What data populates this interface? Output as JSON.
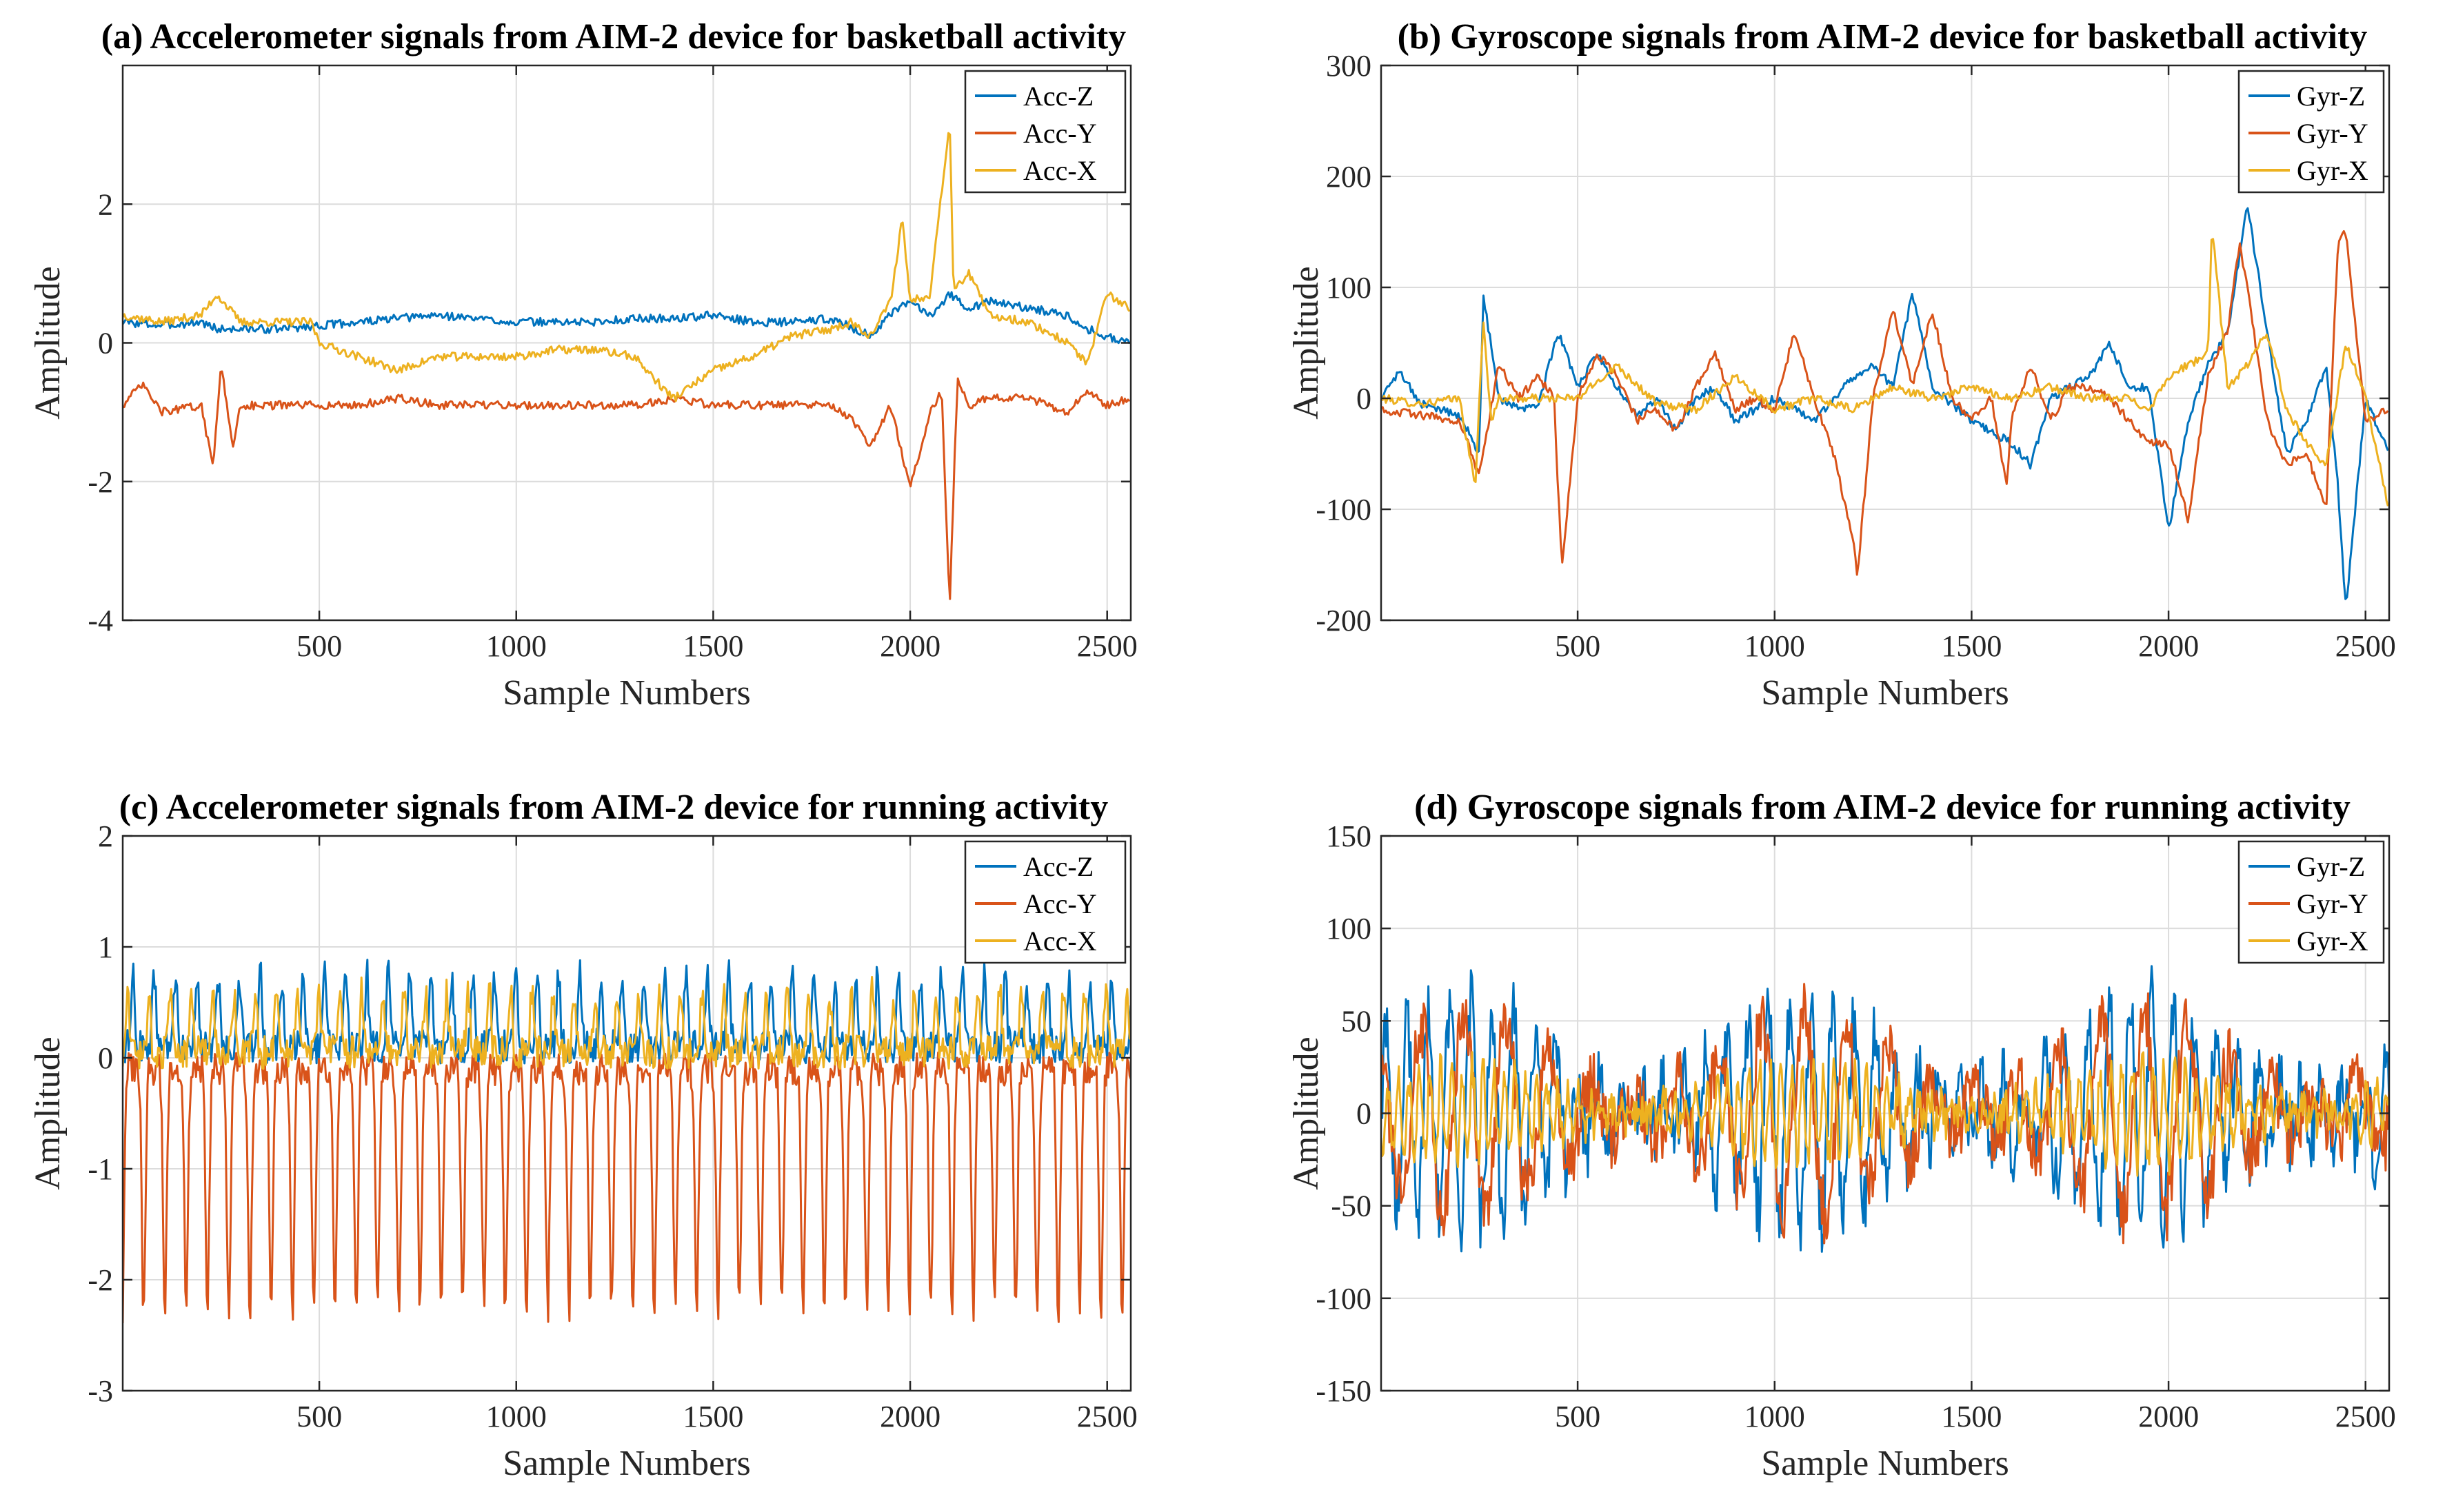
{
  "colors": {
    "Z": "#0072BD",
    "Y": "#D95319",
    "X": "#EDB120",
    "grid": "#dcdcdc",
    "axis": "#262626"
  },
  "chart_data": [
    {
      "type": "line",
      "title": "(a) Accelerometer signals from AIM-2 device for basketball activity",
      "xlabel": "Sample Numbers",
      "ylabel": "Amplitude",
      "xlim": [
        1,
        2560
      ],
      "ylim": [
        -4,
        4
      ],
      "xticks": [
        500,
        1000,
        1500,
        2000,
        2500
      ],
      "xtick_labels": [
        "500",
        "1000",
        "1500",
        "2000",
        "2500"
      ],
      "yticks": [
        -4,
        -2,
        0,
        2
      ],
      "ytick_labels": [
        "-4",
        "-2",
        "0",
        "2"
      ],
      "grid": true,
      "legend_position": "top-right",
      "series": [
        {
          "name": "Acc-Z",
          "color_key": "Z",
          "x": [
            1,
            100,
            200,
            240,
            300,
            400,
            500,
            600,
            700,
            800,
            900,
            1000,
            1100,
            1200,
            1300,
            1400,
            1500,
            1600,
            1700,
            1800,
            1900,
            1950,
            2000,
            2050,
            2100,
            2150,
            2200,
            2300,
            2400,
            2450,
            2500,
            2560
          ],
          "y": [
            0.3,
            0.25,
            0.3,
            0.2,
            0.2,
            0.2,
            0.25,
            0.3,
            0.35,
            0.4,
            0.35,
            0.3,
            0.3,
            0.3,
            0.35,
            0.35,
            0.4,
            0.3,
            0.3,
            0.35,
            0.1,
            0.4,
            0.6,
            0.4,
            0.7,
            0.5,
            0.6,
            0.5,
            0.4,
            0.2,
            0.1,
            0.0
          ]
        },
        {
          "name": "Acc-Y",
          "color_key": "Y",
          "x": [
            1,
            50,
            100,
            200,
            230,
            250,
            280,
            300,
            400,
            500,
            600,
            700,
            800,
            900,
            1000,
            1100,
            1200,
            1300,
            1400,
            1500,
            1600,
            1700,
            1800,
            1850,
            1900,
            1950,
            2000,
            2050,
            2080,
            2100,
            2120,
            2150,
            2200,
            2300,
            2400,
            2450,
            2500,
            2560
          ],
          "y": [
            -0.9,
            -0.6,
            -1.0,
            -0.9,
            -1.8,
            -0.3,
            -1.5,
            -0.9,
            -0.9,
            -0.9,
            -0.9,
            -0.8,
            -0.9,
            -0.9,
            -0.9,
            -0.9,
            -0.9,
            -0.9,
            -0.8,
            -0.9,
            -0.9,
            -0.9,
            -0.9,
            -1.1,
            -1.5,
            -0.9,
            -2.1,
            -1.0,
            -0.7,
            -3.8,
            -0.5,
            -0.9,
            -0.8,
            -0.8,
            -1.0,
            -0.7,
            -0.9,
            -0.8
          ]
        },
        {
          "name": "Acc-X",
          "color_key": "X",
          "x": [
            1,
            100,
            200,
            240,
            300,
            400,
            480,
            500,
            600,
            700,
            800,
            900,
            1000,
            1100,
            1200,
            1300,
            1380,
            1400,
            1500,
            1600,
            1700,
            1800,
            1850,
            1900,
            1950,
            1980,
            2000,
            2050,
            2100,
            2110,
            2150,
            2200,
            2300,
            2400,
            2450,
            2500,
            2560
          ],
          "y": [
            0.4,
            0.3,
            0.4,
            0.7,
            0.3,
            0.3,
            0.3,
            0.0,
            -0.2,
            -0.4,
            -0.2,
            -0.2,
            -0.2,
            -0.1,
            -0.1,
            -0.2,
            -0.7,
            -0.8,
            -0.4,
            -0.2,
            0.1,
            0.2,
            0.3,
            0.1,
            0.6,
            1.8,
            0.6,
            0.7,
            3.2,
            0.8,
            1.0,
            0.4,
            0.3,
            0.0,
            -0.3,
            0.7,
            0.5
          ]
        }
      ]
    },
    {
      "type": "line",
      "title": "(b) Gyroscope signals from AIM-2 device for basketball activity",
      "xlabel": "Sample Numbers",
      "ylabel": "Amplitude",
      "xlim": [
        1,
        2560
      ],
      "ylim": [
        -200,
        300
      ],
      "xticks": [
        500,
        1000,
        1500,
        2000,
        2500
      ],
      "xtick_labels": [
        "500",
        "1000",
        "1500",
        "2000",
        "2500"
      ],
      "yticks": [
        -200,
        -100,
        0,
        100,
        200,
        300
      ],
      "ytick_labels": [
        "-200",
        "-100",
        "0",
        "100",
        "200",
        "300"
      ],
      "grid": true,
      "legend_position": "top-right",
      "series": [
        {
          "name": "Gyr-Z",
          "color_key": "Z",
          "x": [
            1,
            50,
            100,
            150,
            200,
            250,
            260,
            300,
            350,
            400,
            450,
            500,
            550,
            600,
            650,
            700,
            750,
            800,
            850,
            900,
            950,
            1000,
            1100,
            1200,
            1250,
            1300,
            1350,
            1400,
            1500,
            1600,
            1650,
            1700,
            1800,
            1850,
            1900,
            1950,
            2000,
            2050,
            2100,
            2150,
            2200,
            2250,
            2300,
            2350,
            2400,
            2430,
            2450,
            2500,
            2560
          ],
          "y": [
            0,
            25,
            -5,
            -10,
            -15,
            -50,
            95,
            0,
            -10,
            -5,
            60,
            10,
            40,
            10,
            -15,
            0,
            -30,
            0,
            10,
            -20,
            -10,
            0,
            -20,
            20,
            30,
            10,
            95,
            10,
            -20,
            -40,
            -60,
            0,
            20,
            50,
            10,
            10,
            -120,
            -20,
            30,
            60,
            175,
            60,
            -50,
            -20,
            30,
            -80,
            -190,
            0,
            -50
          ]
        },
        {
          "name": "Gyr-Y",
          "color_key": "Y",
          "x": [
            1,
            100,
            200,
            250,
            300,
            350,
            400,
            440,
            460,
            500,
            550,
            600,
            650,
            700,
            750,
            800,
            850,
            900,
            950,
            1000,
            1050,
            1100,
            1150,
            1200,
            1210,
            1250,
            1300,
            1350,
            1400,
            1450,
            1500,
            1550,
            1590,
            1600,
            1650,
            1700,
            1750,
            1800,
            1850,
            1900,
            1950,
            2000,
            2050,
            2100,
            2150,
            2180,
            2200,
            2250,
            2300,
            2350,
            2400,
            2430,
            2450,
            2500,
            2560
          ],
          "y": [
            -10,
            -15,
            -20,
            -70,
            30,
            0,
            20,
            0,
            -155,
            0,
            40,
            20,
            -20,
            -10,
            -30,
            10,
            40,
            -10,
            0,
            -10,
            60,
            0,
            -50,
            -130,
            -160,
            0,
            80,
            10,
            80,
            0,
            -20,
            0,
            -80,
            -20,
            30,
            -20,
            10,
            10,
            0,
            -20,
            -40,
            -40,
            -110,
            20,
            60,
            140,
            100,
            -20,
            -60,
            -50,
            -100,
            140,
            150,
            -20,
            -10
          ]
        },
        {
          "name": "Gyr-X",
          "color_key": "X",
          "x": [
            1,
            100,
            200,
            240,
            260,
            280,
            300,
            400,
            500,
            600,
            700,
            800,
            900,
            1000,
            1100,
            1200,
            1300,
            1400,
            1500,
            1600,
            1700,
            1800,
            1900,
            1950,
            2000,
            2050,
            2100,
            2110,
            2150,
            2200,
            2250,
            2300,
            2350,
            2400,
            2450,
            2500,
            2560
          ],
          "y": [
            0,
            -5,
            0,
            -80,
            70,
            -20,
            0,
            0,
            0,
            30,
            -5,
            -10,
            20,
            -10,
            0,
            -10,
            10,
            0,
            10,
            0,
            10,
            0,
            0,
            -10,
            20,
            30,
            40,
            155,
            10,
            30,
            60,
            -10,
            -40,
            -60,
            50,
            0,
            -100
          ]
        }
      ]
    },
    {
      "type": "line",
      "title": "(c) Accelerometer signals from AIM-2 device for running activity",
      "xlabel": "Sample Numbers",
      "ylabel": "Amplitude",
      "xlim": [
        1,
        2560
      ],
      "ylim": [
        -3,
        2
      ],
      "xticks": [
        500,
        1000,
        1500,
        2000,
        2500
      ],
      "xtick_labels": [
        "500",
        "1000",
        "1500",
        "2000",
        "2500"
      ],
      "yticks": [
        -3,
        -2,
        -1,
        0,
        1,
        2
      ],
      "ytick_labels": [
        "-3",
        "-2",
        "-1",
        "0",
        "1",
        "2"
      ],
      "grid": true,
      "legend_position": "top-right",
      "series": [
        {
          "name": "Acc-Z",
          "color_key": "Z",
          "periodic": {
            "period": 54,
            "base": 0.1,
            "amp": 0.65,
            "phase": 0.0,
            "noise": 0.15,
            "shape": "pulse"
          },
          "x_range": [
            1,
            2560
          ]
        },
        {
          "name": "Acc-Y",
          "color_key": "Y",
          "periodic": {
            "period": 54,
            "base": -0.1,
            "amp": -2.2,
            "phase": 0.5,
            "noise": 0.15,
            "shape": "pulse"
          },
          "x_range": [
            1,
            2560
          ]
        },
        {
          "name": "Acc-X",
          "color_key": "X",
          "periodic": {
            "period": 54,
            "base": 0.05,
            "amp": 0.55,
            "phase": 0.25,
            "noise": 0.15,
            "shape": "pulse"
          },
          "x_range": [
            1,
            2560
          ]
        }
      ]
    },
    {
      "type": "line",
      "title": "(d) Gyroscope signals from AIM-2 device for running activity",
      "xlabel": "Sample Numbers",
      "ylabel": "Amplitude",
      "xlim": [
        1,
        2560
      ],
      "ylim": [
        -150,
        150
      ],
      "xticks": [
        500,
        1000,
        1500,
        2000,
        2500
      ],
      "xtick_labels": [
        "500",
        "1000",
        "1500",
        "2000",
        "2500"
      ],
      "yticks": [
        -150,
        -100,
        -50,
        0,
        50,
        100,
        150
      ],
      "ytick_labels": [
        "-150",
        "-100",
        "-50",
        "0",
        "50",
        "100",
        "150"
      ],
      "grid": true,
      "legend_position": "top-right",
      "series": [
        {
          "name": "Gyr-Z",
          "color_key": "Z",
          "periodic": {
            "period": 54,
            "base": 0,
            "amp": 60,
            "phase": 0.0,
            "noise": 20,
            "shape": "sine"
          },
          "x_range": [
            1,
            2560
          ]
        },
        {
          "name": "Gyr-Y",
          "color_key": "Y",
          "periodic": {
            "period": 108,
            "base": 0,
            "amp": 55,
            "phase": 0.3,
            "noise": 18,
            "shape": "sine"
          },
          "x_range": [
            1,
            2560
          ]
        },
        {
          "name": "Gyr-X",
          "color_key": "X",
          "periodic": {
            "period": 27,
            "base": 0,
            "amp": 25,
            "phase": 0.6,
            "noise": 10,
            "shape": "sine"
          },
          "x_range": [
            1,
            2560
          ]
        }
      ]
    }
  ]
}
